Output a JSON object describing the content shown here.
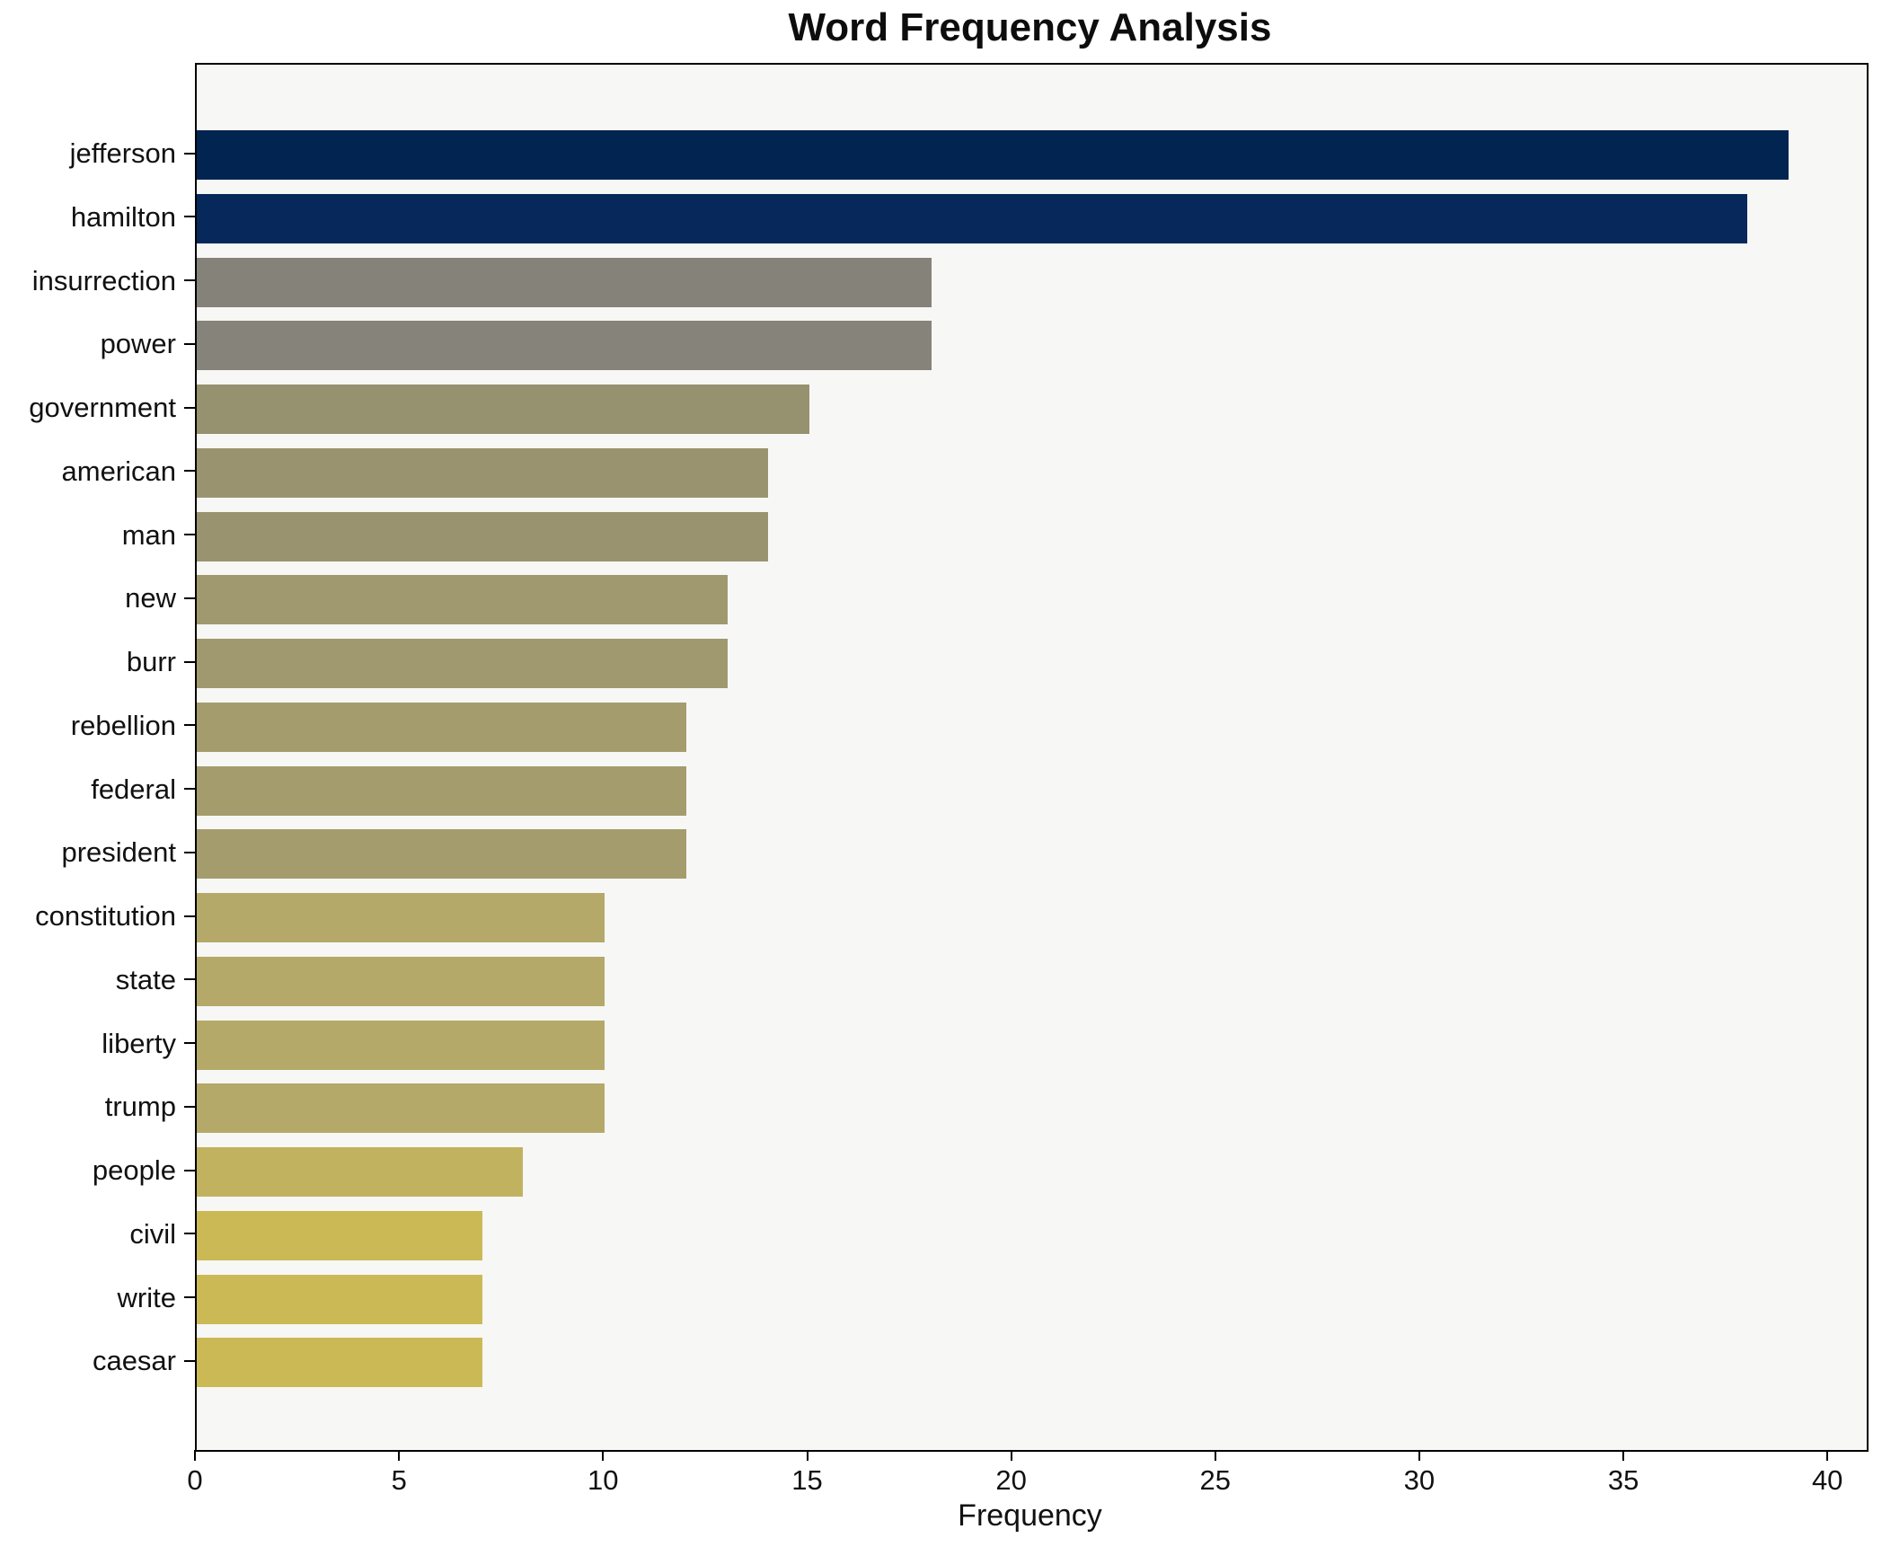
{
  "chart_data": {
    "type": "bar",
    "orientation": "horizontal",
    "title": "Word Frequency Analysis",
    "xlabel": "Frequency",
    "ylabel": "",
    "xlim": [
      0,
      40.92
    ],
    "xticks": [
      0,
      5,
      10,
      15,
      20,
      25,
      30,
      35,
      40
    ],
    "grid": false,
    "legend": null,
    "plot_background": "#f7f7f5",
    "spine_color": "#000000",
    "categories": [
      "jefferson",
      "hamilton",
      "insurrection",
      "power",
      "government",
      "american",
      "man",
      "new",
      "burr",
      "rebellion",
      "federal",
      "president",
      "constitution",
      "state",
      "liberty",
      "trump",
      "people",
      "civil",
      "write",
      "caesar"
    ],
    "values": [
      39,
      38,
      18,
      18,
      15,
      14,
      14,
      13,
      13,
      12,
      12,
      12,
      10,
      10,
      10,
      10,
      8,
      7,
      7,
      7
    ],
    "bar_colors": [
      "#022451",
      "#06285A",
      "#85827A",
      "#86837B",
      "#96916F",
      "#9A9370",
      "#9A9370",
      "#A0986F",
      "#A0986F",
      "#A59C6D",
      "#A59C6D",
      "#A59C6D",
      "#B4A968",
      "#B4A968",
      "#B4A968",
      "#B4A968",
      "#C1B25F",
      "#CBB956",
      "#CBB956",
      "#CBB956"
    ]
  }
}
